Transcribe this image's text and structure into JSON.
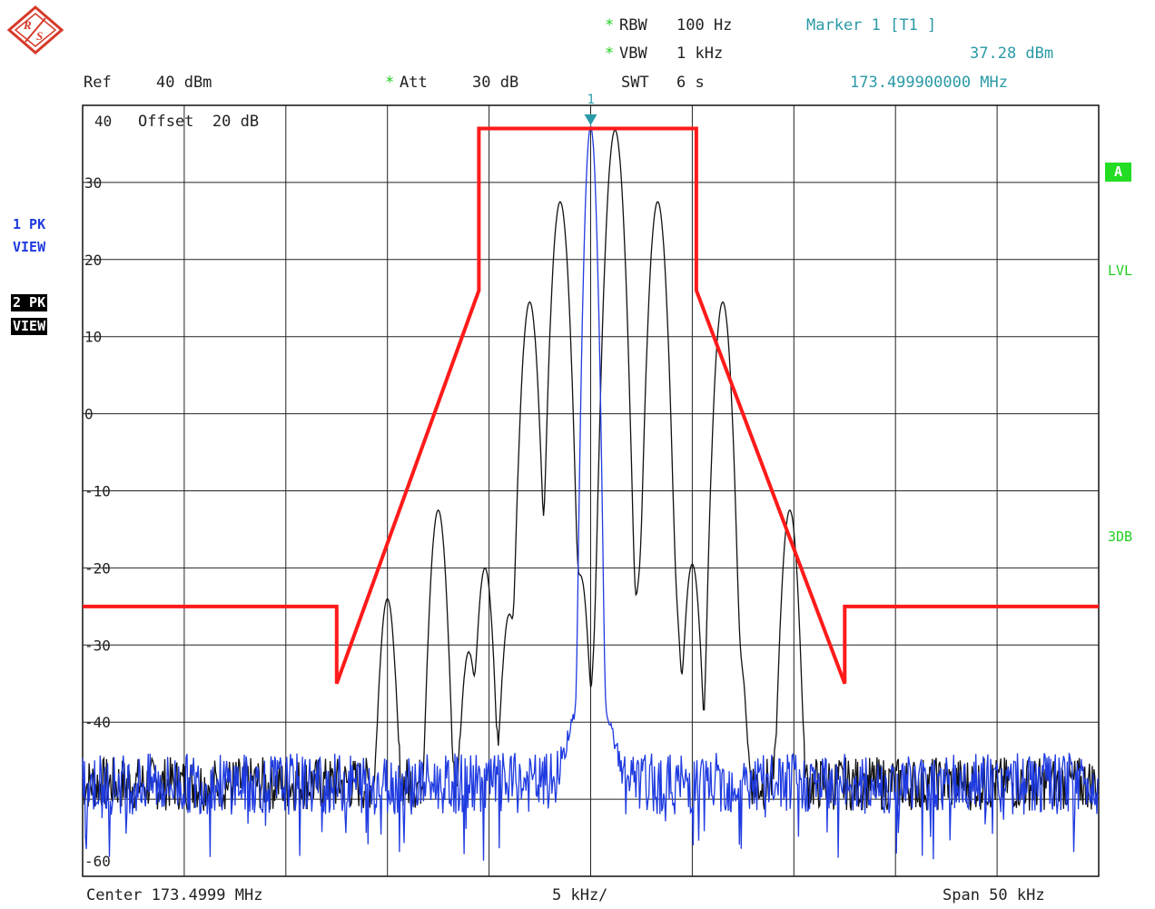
{
  "header": {
    "rbw_label": "RBW",
    "rbw_value": "100 Hz",
    "vbw_label": "VBW",
    "vbw_value": "1 kHz",
    "swt_label": "SWT",
    "swt_value": "6 s",
    "ref_label": "Ref",
    "ref_value": "40 dBm",
    "att_label": "Att",
    "att_value": "30 dB",
    "star": "*",
    "marker_title": "Marker 1 [T1 ]",
    "marker_level": "37.28 dBm",
    "marker_freq": "173.499900000 MHz"
  },
  "plot": {
    "offset_text": "Offset  20 dB",
    "marker_number": "1"
  },
  "left_labels": {
    "trace1_line1": "1 PK",
    "trace1_line2": "VIEW",
    "trace2_line1": "2 PK",
    "trace2_line2": "VIEW"
  },
  "right_labels": {
    "a": "A",
    "lvl": "LVL",
    "db3": "3DB"
  },
  "footer": {
    "center": "Center 173.4999 MHz",
    "div": "5 kHz/",
    "span": "Span 50 kHz"
  },
  "colors": {
    "trace1": "#1f3be0",
    "trace2": "#111111",
    "limit": "#ff1a1a",
    "marker": "#2a9aa6",
    "accent": "#1fcf1f"
  },
  "chart_data": {
    "type": "line",
    "title": "",
    "xlabel": "",
    "ylabel": "",
    "x_unit": "kHz offset from center",
    "xlim": [
      -25,
      25
    ],
    "ylim": [
      -62,
      40
    ],
    "grid": true,
    "y_ticks": [
      "40",
      "30",
      "20",
      "10",
      "0",
      "-10",
      "-20",
      "-30",
      "-40",
      "-60"
    ],
    "limit_line": {
      "x": [
        -25,
        -12.5,
        -12.5,
        -5.5,
        -5.5,
        5.2,
        5.2,
        12.5,
        12.5,
        25
      ],
      "y": [
        -25,
        -25,
        -35,
        16,
        37,
        37,
        16,
        -35,
        -25,
        -25
      ]
    },
    "trace2_peaks": {
      "x": [
        -10,
        -7.5,
        -6.0,
        -5.2,
        -4.0,
        -3.0,
        -2.5,
        -1.5,
        -0.5,
        0.5,
        1.2,
        1.7,
        2.5,
        3.3,
        4.0,
        5.0,
        6.5,
        7.3,
        9.8
      ],
      "y": [
        -24,
        -12.5,
        -31,
        -20,
        -26,
        14.5,
        -19,
        27.5,
        -21,
        -23,
        36.8,
        -10.5,
        -20.5,
        27.5,
        -21,
        -19.5,
        14.5,
        -31.5,
        -12.5
      ]
    },
    "trace2_floor": -48,
    "trace1": {
      "peak_x": 0,
      "peak_y": 37.28,
      "floor": -48,
      "shoulder_points": {
        "x": [
          -0.3,
          0.3,
          0.8
        ],
        "y": [
          -35,
          -35,
          -39
        ]
      }
    },
    "marker": {
      "x": 0,
      "y": 37.28
    }
  }
}
